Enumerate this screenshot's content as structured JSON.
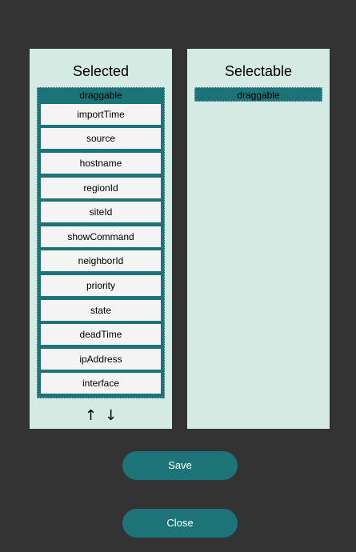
{
  "selected_panel": {
    "title": "Selected",
    "header_label": "draggable",
    "items": [
      "importTime",
      "source",
      "hostname",
      "regionId",
      "siteId",
      "showCommand",
      "neighborId",
      "priority",
      "state",
      "deadTime",
      "ipAddress",
      "interface"
    ],
    "arrow_up": "↑",
    "arrow_down": "↓"
  },
  "selectable_panel": {
    "title": "Selectable",
    "header_label": "draggable"
  },
  "buttons": {
    "save_label": "Save",
    "close_label": "Close"
  },
  "colors": {
    "background": "#333333",
    "panel": "#d4eae3",
    "accent": "#1d7478",
    "item": "#f4f4f4"
  }
}
